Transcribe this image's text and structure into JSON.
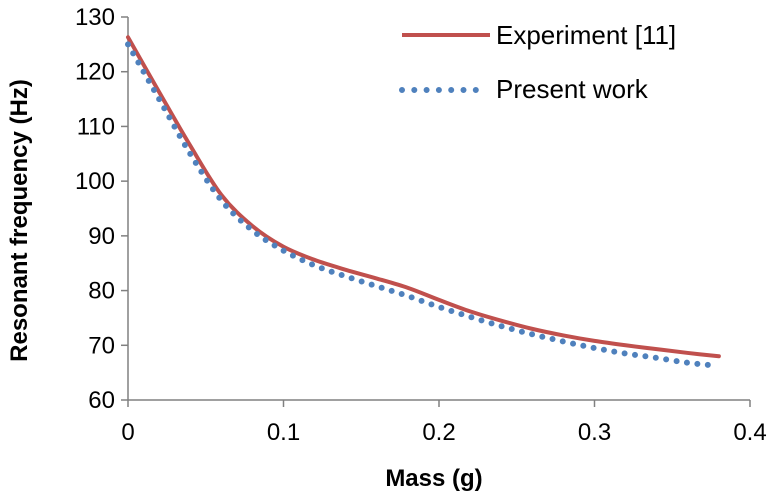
{
  "chart_data": {
    "type": "line",
    "title": "",
    "xlabel": "Mass (g)",
    "ylabel": "Resonant frequency (Hz)",
    "xlim": [
      0,
      0.4
    ],
    "ylim": [
      60,
      130
    ],
    "grid": false,
    "legend_position": "top-right",
    "x_ticks": [
      0,
      0.1,
      0.2,
      0.3,
      0.4
    ],
    "y_ticks": [
      60,
      70,
      80,
      90,
      100,
      110,
      120,
      130
    ],
    "x_tick_labels": [
      "0",
      "0.1",
      "0.2",
      "0.3",
      "0.4"
    ],
    "y_tick_labels": [
      "60",
      "70",
      "80",
      "90",
      "100",
      "110",
      "120",
      "130"
    ],
    "series": [
      {
        "name": "Experiment [11]",
        "style": "solid",
        "color": "#c0504d",
        "x": [
          0,
          0.02,
          0.04,
          0.06,
          0.08,
          0.1,
          0.12,
          0.14,
          0.16,
          0.18,
          0.2,
          0.22,
          0.24,
          0.26,
          0.28,
          0.3,
          0.32,
          0.34,
          0.36,
          0.38
        ],
        "values": [
          126.3,
          116.3,
          106.5,
          97.5,
          91.8,
          88.0,
          85.6,
          83.8,
          82.2,
          80.5,
          78.3,
          76.2,
          74.5,
          73.0,
          71.8,
          70.8,
          70.0,
          69.3,
          68.6,
          68.0
        ]
      },
      {
        "name": "Present work",
        "style": "dotted",
        "color": "#4f81bd",
        "x": [
          0,
          0.02,
          0.04,
          0.06,
          0.08,
          0.1,
          0.12,
          0.14,
          0.16,
          0.18,
          0.2,
          0.22,
          0.24,
          0.26,
          0.28,
          0.3,
          0.32,
          0.34,
          0.36,
          0.378
        ],
        "values": [
          125.0,
          115.0,
          105.0,
          96.5,
          91.0,
          87.3,
          84.6,
          82.6,
          80.8,
          79.0,
          77.0,
          75.2,
          73.5,
          72.0,
          70.7,
          69.5,
          68.5,
          67.7,
          66.8,
          66.3
        ]
      }
    ]
  }
}
